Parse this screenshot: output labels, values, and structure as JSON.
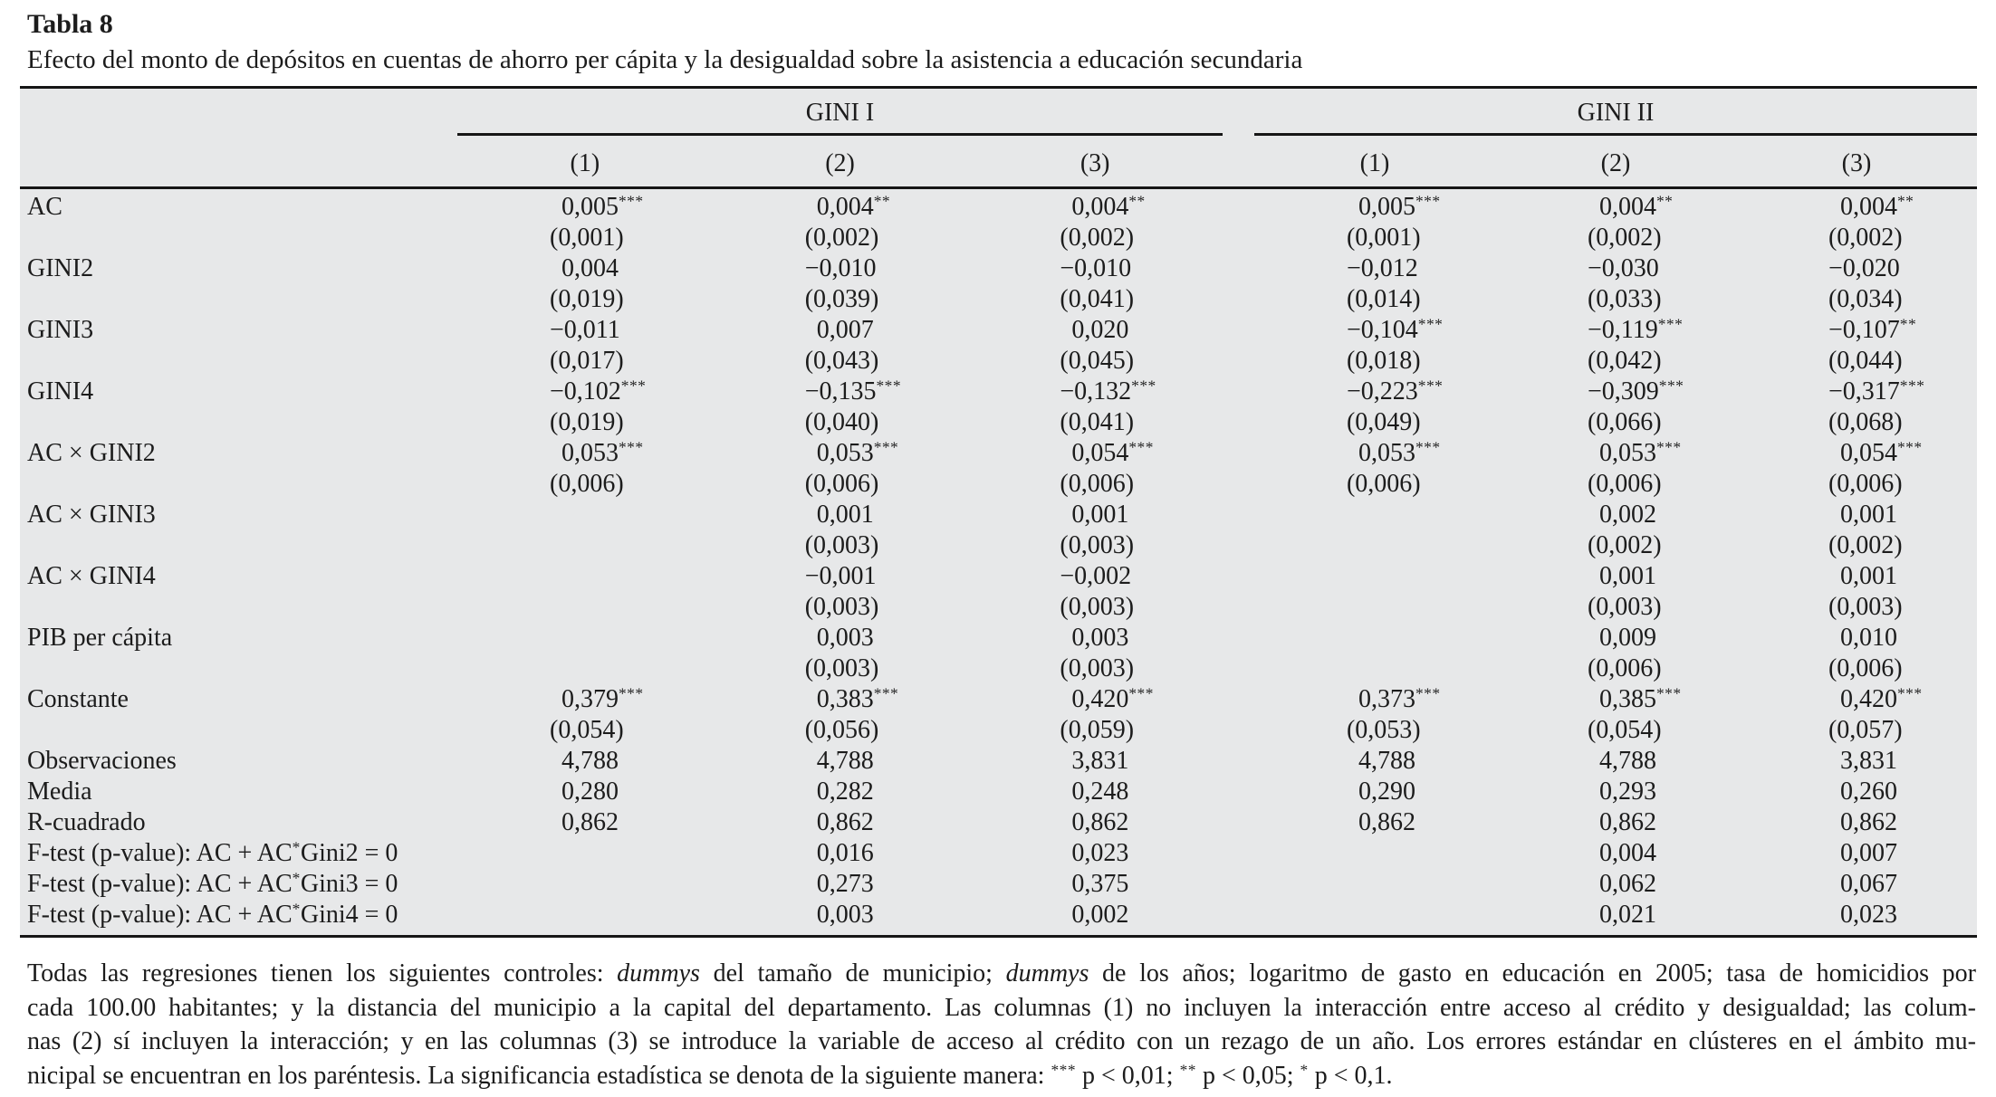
{
  "caption": {
    "label": "Tabla 8",
    "text": "Efecto del monto de depósitos en cuentas de ahorro per cápita y la desigualdad sobre la asistencia a educación secundaria"
  },
  "table": {
    "groups": [
      "GINI I",
      "GINI II"
    ],
    "col_headers": [
      "(1)",
      "(2)",
      "(3)",
      "(1)",
      "(2)",
      "(3)"
    ],
    "rows": [
      {
        "label": "AC",
        "coef": [
          "0,005***",
          "0,004**",
          "0,004**",
          "0,005***",
          "0,004**",
          "0,004**"
        ],
        "se": [
          "(0,001)",
          "(0,002)",
          "(0,002)",
          "(0,001)",
          "(0,002)",
          "(0,002)"
        ]
      },
      {
        "label": "GINI2",
        "coef": [
          "0,004",
          "−0,010",
          "−0,010",
          "−0,012",
          "−0,030",
          "−0,020"
        ],
        "se": [
          "(0,019)",
          "(0,039)",
          "(0,041)",
          "(0,014)",
          "(0,033)",
          "(0,034)"
        ]
      },
      {
        "label": "GINI3",
        "coef": [
          "−0,011",
          "0,007",
          "0,020",
          "−0,104***",
          "−0,119***",
          "−0,107**"
        ],
        "se": [
          "(0,017)",
          "(0,043)",
          "(0,045)",
          "(0,018)",
          "(0,042)",
          "(0,044)"
        ]
      },
      {
        "label": "GINI4",
        "coef": [
          "−0,102***",
          "−0,135***",
          "−0,132***",
          "−0,223***",
          "−0,309***",
          "−0,317***"
        ],
        "se": [
          "(0,019)",
          "(0,040)",
          "(0,041)",
          "(0,049)",
          "(0,066)",
          "(0,068)"
        ]
      },
      {
        "label": "AC × GINI2",
        "coef": [
          "0,053***",
          "0,053***",
          "0,054***",
          "0,053***",
          "0,053***",
          "0,054***"
        ],
        "se": [
          "(0,006)",
          "(0,006)",
          "(0,006)",
          "(0,006)",
          "(0,006)",
          "(0,006)"
        ]
      },
      {
        "label": "AC × GINI3",
        "coef": [
          "",
          "0,001",
          "0,001",
          "",
          "0,002",
          "0,001"
        ],
        "se": [
          "",
          "(0,003)",
          "(0,003)",
          "",
          "(0,002)",
          "(0,002)"
        ]
      },
      {
        "label": "AC × GINI4",
        "coef": [
          "",
          "−0,001",
          "−0,002",
          "",
          "0,001",
          "0,001"
        ],
        "se": [
          "",
          "(0,003)",
          "(0,003)",
          "",
          "(0,003)",
          "(0,003)"
        ]
      },
      {
        "label": "PIB per cápita",
        "coef": [
          "",
          "0,003",
          "0,003",
          "",
          "0,009",
          "0,010"
        ],
        "se": [
          "",
          "(0,003)",
          "(0,003)",
          "",
          "(0,006)",
          "(0,006)"
        ]
      },
      {
        "label": "Constante",
        "coef": [
          "0,379***",
          "0,383***",
          "0,420***",
          "0,373***",
          "0,385***",
          "0,420***"
        ],
        "se": [
          "(0,054)",
          "(0,056)",
          "(0,059)",
          "(0,053)",
          "(0,054)",
          "(0,057)"
        ]
      }
    ],
    "stat_rows": [
      {
        "label": "Observaciones",
        "values": [
          "4,788",
          "4,788",
          "3,831",
          "4,788",
          "4,788",
          "3,831"
        ]
      },
      {
        "label": "Media",
        "values": [
          "0,280",
          "0,282",
          "0,248",
          "0,290",
          "0,293",
          "0,260"
        ]
      },
      {
        "label": "R-cuadrado",
        "values": [
          "0,862",
          "0,862",
          "0,862",
          "0,862",
          "0,862",
          "0,862"
        ]
      },
      {
        "label": "F-test (p-value): AC + AC*Gini2 = 0",
        "values": [
          "",
          "0,016",
          "0,023",
          "",
          "0,004",
          "0,007"
        ]
      },
      {
        "label": "F-test (p-value): AC + AC*Gini3 = 0",
        "values": [
          "",
          "0,273",
          "0,375",
          "",
          "0,062",
          "0,067"
        ]
      },
      {
        "label": "F-test (p-value): AC + AC*Gini4 = 0",
        "values": [
          "",
          "0,003",
          "0,002",
          "",
          "0,021",
          "0,023"
        ]
      }
    ]
  },
  "footnote": {
    "lines": [
      {
        "segments": [
          {
            "t": "Todas las regresiones tienen los siguientes controles: "
          },
          {
            "t": "dummys",
            "i": true
          },
          {
            "t": " del tamaño de municipio; "
          },
          {
            "t": "dummys",
            "i": true
          },
          {
            "t": " de los años; logaritmo de gasto en educación en 2005; tasa de homicidios por"
          }
        ]
      },
      {
        "segments": [
          {
            "t": "cada 100.00 habitantes; y la distancia del municipio a la capital del departamento. Las columnas (1) no incluyen la interacción entre acceso al crédito y desigualdad; las colum-"
          }
        ]
      },
      {
        "segments": [
          {
            "t": "nas (2) sí incluyen la interacción; y en las columnas (3) se introduce la variable de acceso al crédito con un rezago de un año. Los errores estándar en clústeres en el ámbito mu-"
          }
        ]
      },
      {
        "segments": [
          {
            "t": "nicipal se encuentran en los paréntesis. La significancia estadística se denota de la siguiente manera: "
          },
          {
            "t": "***",
            "sup": true
          },
          {
            "t": " p < 0,01; "
          },
          {
            "t": "**",
            "sup": true
          },
          {
            "t": " p < 0,05; "
          },
          {
            "t": "*",
            "sup": true
          },
          {
            "t": " p < 0,1."
          }
        ]
      }
    ]
  },
  "colors": {
    "table_background": "#e7e8e9",
    "rule": "#161616",
    "text": "#1c1c1c"
  }
}
